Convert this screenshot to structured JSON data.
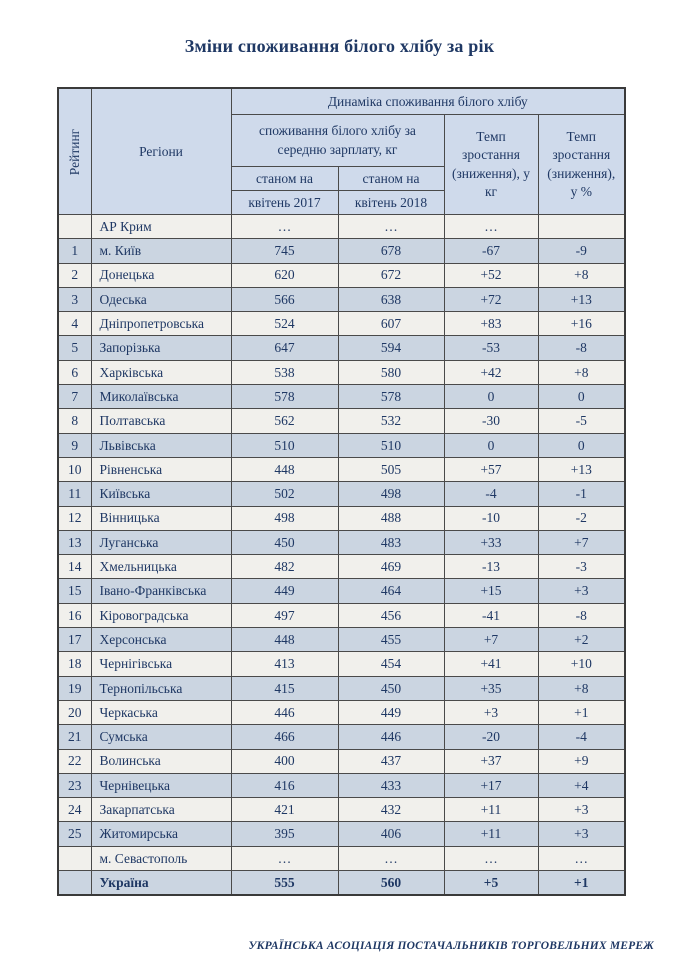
{
  "page": {
    "title": "Зміни споживання білого хлібу за рік",
    "footer": "УКРАЇНСЬКА АСОЦІАЦІЯ ПОСТАЧАЛЬНИКІВ ТОРГОВЕЛЬНИХ МЕРЕЖ"
  },
  "colors": {
    "text_navy": "#1F3864",
    "header_bg": "#CFDAEB",
    "row_blue": "#CBD5E1",
    "row_light": "#F1F0EC",
    "border": "#4a4a4a"
  },
  "table": {
    "header": {
      "ranking": "Рейтинг",
      "regions": "Регіони",
      "dynamics": "Динаміка споживання білого хлібу",
      "consumption": "споживання білого хлібу за середню зарплату, кг",
      "as_of": "станом на",
      "april_2017": "квітень 2017",
      "april_2018": "квітень 2018",
      "growth_kg": "Темп зростання (зниження), у кг",
      "growth_pct": "Темп зростання (зниження), у %"
    },
    "rows": [
      {
        "rank": "",
        "region": "АР Крим",
        "v2017": "…",
        "v2018": "…",
        "diff_kg": "…",
        "diff_pct": ""
      },
      {
        "rank": "1",
        "region": "м. Київ",
        "v2017": "745",
        "v2018": "678",
        "diff_kg": "-67",
        "diff_pct": "-9"
      },
      {
        "rank": "2",
        "region": "Донецька",
        "v2017": "620",
        "v2018": "672",
        "diff_kg": "+52",
        "diff_pct": "+8"
      },
      {
        "rank": "3",
        "region": "Одеська",
        "v2017": "566",
        "v2018": "638",
        "diff_kg": "+72",
        "diff_pct": "+13"
      },
      {
        "rank": "4",
        "region": "Дніпропетровська",
        "v2017": "524",
        "v2018": "607",
        "diff_kg": "+83",
        "diff_pct": "+16"
      },
      {
        "rank": "5",
        "region": "Запорізька",
        "v2017": "647",
        "v2018": "594",
        "diff_kg": "-53",
        "diff_pct": "-8"
      },
      {
        "rank": "6",
        "region": "Харківська",
        "v2017": "538",
        "v2018": "580",
        "diff_kg": "+42",
        "diff_pct": "+8"
      },
      {
        "rank": "7",
        "region": "Миколаївська",
        "v2017": "578",
        "v2018": "578",
        "diff_kg": "0",
        "diff_pct": "0"
      },
      {
        "rank": "8",
        "region": "Полтавська",
        "v2017": "562",
        "v2018": "532",
        "diff_kg": "-30",
        "diff_pct": "-5"
      },
      {
        "rank": "9",
        "region": "Львівська",
        "v2017": "510",
        "v2018": "510",
        "diff_kg": "0",
        "diff_pct": "0"
      },
      {
        "rank": "10",
        "region": "Рівненська",
        "v2017": "448",
        "v2018": "505",
        "diff_kg": "+57",
        "diff_pct": "+13"
      },
      {
        "rank": "11",
        "region": "Київська",
        "v2017": "502",
        "v2018": "498",
        "diff_kg": "-4",
        "diff_pct": "-1"
      },
      {
        "rank": "12",
        "region": "Вінницька",
        "v2017": "498",
        "v2018": "488",
        "diff_kg": "-10",
        "diff_pct": "-2"
      },
      {
        "rank": "13",
        "region": "Луганська",
        "v2017": "450",
        "v2018": "483",
        "diff_kg": "+33",
        "diff_pct": "+7"
      },
      {
        "rank": "14",
        "region": "Хмельницька",
        "v2017": "482",
        "v2018": "469",
        "diff_kg": "-13",
        "diff_pct": "-3"
      },
      {
        "rank": "15",
        "region": "Івано-Франківська",
        "v2017": "449",
        "v2018": "464",
        "diff_kg": "+15",
        "diff_pct": "+3"
      },
      {
        "rank": "16",
        "region": "Кіровоградська",
        "v2017": "497",
        "v2018": "456",
        "diff_kg": "-41",
        "diff_pct": "-8"
      },
      {
        "rank": "17",
        "region": "Херсонська",
        "v2017": "448",
        "v2018": "455",
        "diff_kg": "+7",
        "diff_pct": "+2"
      },
      {
        "rank": "18",
        "region": "Чернігівська",
        "v2017": "413",
        "v2018": "454",
        "diff_kg": "+41",
        "diff_pct": "+10"
      },
      {
        "rank": "19",
        "region": "Тернопільська",
        "v2017": "415",
        "v2018": "450",
        "diff_kg": "+35",
        "diff_pct": "+8"
      },
      {
        "rank": "20",
        "region": "Черкаська",
        "v2017": "446",
        "v2018": "449",
        "diff_kg": "+3",
        "diff_pct": "+1"
      },
      {
        "rank": "21",
        "region": "Сумська",
        "v2017": "466",
        "v2018": "446",
        "diff_kg": "-20",
        "diff_pct": "-4"
      },
      {
        "rank": "22",
        "region": "Волинська",
        "v2017": "400",
        "v2018": "437",
        "diff_kg": "+37",
        "diff_pct": "+9"
      },
      {
        "rank": "23",
        "region": "Чернівецька",
        "v2017": "416",
        "v2018": "433",
        "diff_kg": "+17",
        "diff_pct": "+4"
      },
      {
        "rank": "24",
        "region": "Закарпатська",
        "v2017": "421",
        "v2018": "432",
        "diff_kg": "+11",
        "diff_pct": "+3"
      },
      {
        "rank": "25",
        "region": "Житомирська",
        "v2017": "395",
        "v2018": "406",
        "diff_kg": "+11",
        "diff_pct": "+3"
      },
      {
        "rank": "",
        "region": "м. Севастополь",
        "v2017": "…",
        "v2018": "…",
        "diff_kg": "…",
        "diff_pct": "…"
      },
      {
        "rank": "",
        "region": "Україна",
        "v2017": "555",
        "v2018": "560",
        "diff_kg": "+5",
        "diff_pct": "+1",
        "is_total": true
      }
    ]
  }
}
